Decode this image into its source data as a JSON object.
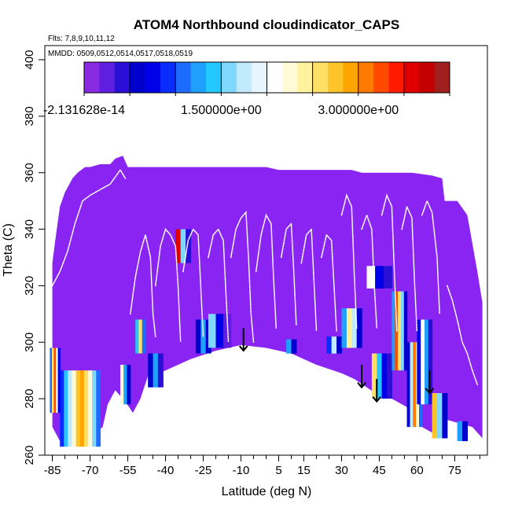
{
  "chart_data": {
    "type": "heatmap",
    "title": "ATOM4 Northbound cloudindicator_CAPS",
    "flights_label": "Flts: 7,8,9,10,11,12",
    "dates_label": "MMDD: 0509,0512,0514,0517,0518,0519",
    "xlabel": "Latitude (deg N)",
    "ylabel": "Theta (C)",
    "xlim": [
      -88,
      88
    ],
    "ylim": [
      260,
      405
    ],
    "x_ticks": [
      -85,
      -70,
      -55,
      -40,
      -25,
      -10,
      5,
      15,
      30,
      45,
      60,
      75
    ],
    "x_tick_labels": [
      "-85",
      "-70",
      "-55",
      "-40",
      "-25",
      "-10",
      "5",
      "15",
      "30",
      "45",
      "60",
      "75"
    ],
    "x_minor_step": 5,
    "y_ticks": [
      260,
      280,
      300,
      320,
      340,
      360,
      380,
      400
    ],
    "y_tick_labels": [
      "260",
      "280",
      "300",
      "320",
      "340",
      "360",
      "380",
      "400"
    ],
    "colorbar": {
      "range": [
        -2.131628e-14,
        4.0
      ],
      "tick_values": [
        -2.131628e-14,
        1.5,
        3.0
      ],
      "tick_labels": [
        "-2.131628e-14",
        "1.500000e+00",
        "3.000000e+00"
      ],
      "colors": [
        "#8a2be2",
        "#5f1ee0",
        "#2a0fd6",
        "#0000cd",
        "#0000e8",
        "#0a2cff",
        "#1e6bff",
        "#1fa0ff",
        "#22c8ff",
        "#7fd9ff",
        "#c2eaff",
        "#e6f5ff",
        "#ffffff",
        "#fffbd6",
        "#fff3a0",
        "#ffe066",
        "#ffc42a",
        "#ffa500",
        "#ff7a00",
        "#ff4a00",
        "#ff1a00",
        "#e00000",
        "#c20000",
        "#9f1f1f"
      ]
    },
    "background_value": 0,
    "background_color": "#8a24f2",
    "cloud_color": "#2850e8",
    "tropopause_line_color": "#ffffff",
    "data_region": {
      "top_edge": [
        [
          -85,
          328
        ],
        [
          -84,
          335
        ],
        [
          -82,
          348
        ],
        [
          -80,
          353
        ],
        [
          -77,
          358
        ],
        [
          -75,
          360
        ],
        [
          -72,
          362
        ],
        [
          -70,
          362
        ],
        [
          -66,
          363
        ],
        [
          -62,
          363
        ],
        [
          -60,
          365
        ],
        [
          -57,
          366
        ],
        [
          -55,
          362
        ],
        [
          -50,
          362
        ],
        [
          -40,
          362
        ],
        [
          -30,
          362
        ],
        [
          -20,
          362
        ],
        [
          -10,
          362
        ],
        [
          0,
          362
        ],
        [
          5,
          361
        ],
        [
          15,
          361
        ],
        [
          25,
          361
        ],
        [
          34,
          361
        ],
        [
          38,
          360
        ],
        [
          48,
          360
        ],
        [
          58,
          360
        ],
        [
          66,
          359
        ],
        [
          70,
          358
        ],
        [
          71,
          350
        ],
        [
          76,
          350
        ],
        [
          80,
          345
        ],
        [
          82,
          335
        ],
        [
          84,
          325
        ],
        [
          86,
          314
        ]
      ],
      "bottom_edge": [
        [
          86,
          266
        ],
        [
          82,
          270
        ],
        [
          78,
          271
        ],
        [
          74,
          272
        ],
        [
          70,
          273
        ],
        [
          66,
          268
        ],
        [
          62,
          270
        ],
        [
          58,
          276
        ],
        [
          54,
          278
        ],
        [
          50,
          280
        ],
        [
          45,
          281
        ],
        [
          40,
          284
        ],
        [
          35,
          287
        ],
        [
          30,
          289
        ],
        [
          20,
          292
        ],
        [
          10,
          296
        ],
        [
          0,
          298
        ],
        [
          -10,
          299
        ],
        [
          -20,
          297
        ],
        [
          -30,
          294
        ],
        [
          -40,
          290
        ],
        [
          -47,
          288
        ],
        [
          -50,
          280
        ],
        [
          -53,
          275
        ],
        [
          -56,
          279
        ],
        [
          -60,
          283
        ],
        [
          -63,
          278
        ],
        [
          -65,
          270
        ],
        [
          -72,
          265
        ],
        [
          -78,
          263
        ],
        [
          -82,
          265
        ],
        [
          -85,
          270
        ]
      ]
    },
    "patches": [
      {
        "lat_range": [
          -82,
          -66
        ],
        "theta_range": [
          263,
          290
        ],
        "values": [
          0.9,
          1.4,
          1.8,
          2.3,
          2.7,
          2.9,
          2.6,
          2.2,
          1.6,
          1.0
        ]
      },
      {
        "lat_range": [
          -86,
          -82
        ],
        "theta_range": [
          275,
          298
        ],
        "values": [
          1.0,
          2.6,
          3.2,
          2.0,
          0.8
        ]
      },
      {
        "lat_range": [
          -58,
          -54
        ],
        "theta_range": [
          278,
          292
        ],
        "values": [
          2.3,
          1.2,
          0.6
        ]
      },
      {
        "lat_range": [
          -52,
          -48
        ],
        "theta_range": [
          296,
          308
        ],
        "values": [
          1.4,
          2.6,
          1.0
        ]
      },
      {
        "lat_range": [
          -47,
          -41
        ],
        "theta_range": [
          284,
          296
        ],
        "values": [
          0.6,
          1.2,
          0.4
        ]
      },
      {
        "lat_range": [
          -36,
          -30
        ],
        "theta_range": [
          328,
          340
        ],
        "values": [
          3.6,
          1.6,
          0.4
        ]
      },
      {
        "lat_range": [
          -28,
          -22
        ],
        "theta_range": [
          296,
          308
        ],
        "values": [
          0.5,
          1.3,
          0.6
        ]
      },
      {
        "lat_range": [
          -23,
          -14
        ],
        "theta_range": [
          298,
          310
        ],
        "values": [
          1.5,
          0.8,
          0.3
        ]
      },
      {
        "lat_range": [
          8,
          12
        ],
        "theta_range": [
          296,
          301
        ],
        "values": [
          1.2,
          0.6
        ]
      },
      {
        "lat_range": [
          24,
          30
        ],
        "theta_range": [
          296,
          302
        ],
        "values": [
          0.9,
          1.8,
          0.6
        ]
      },
      {
        "lat_range": [
          30,
          38
        ],
        "theta_range": [
          298,
          312
        ],
        "values": [
          1.2,
          2.4,
          1.8,
          0.6
        ]
      },
      {
        "lat_range": [
          42,
          50
        ],
        "theta_range": [
          280,
          296
        ],
        "values": [
          2.6,
          1.4,
          0.8,
          0.4
        ]
      },
      {
        "lat_range": [
          40,
          50
        ],
        "theta_range": [
          319,
          327
        ],
        "values": [
          2.0,
          0.8,
          0.4
        ]
      },
      {
        "lat_range": [
          50,
          56
        ],
        "theta_range": [
          290,
          318
        ],
        "values": [
          1.2,
          3.2,
          2.6,
          1.6,
          0.6
        ]
      },
      {
        "lat_range": [
          56,
          62
        ],
        "theta_range": [
          270,
          300
        ],
        "values": [
          0.6,
          1.8,
          3.0,
          2.2,
          1.0
        ]
      },
      {
        "lat_range": [
          60,
          66
        ],
        "theta_range": [
          278,
          308
        ],
        "values": [
          0.8,
          2.1,
          1.3,
          0.4
        ]
      },
      {
        "lat_range": [
          66,
          72
        ],
        "theta_range": [
          266,
          282
        ],
        "values": [
          2.7,
          1.6,
          0.5
        ]
      },
      {
        "lat_range": [
          76,
          80
        ],
        "theta_range": [
          265,
          272
        ],
        "values": [
          1.3,
          0.6
        ]
      }
    ],
    "tropopause_traces": [
      [
        [
          -85,
          320
        ],
        [
          -82,
          325
        ],
        [
          -79,
          332
        ],
        [
          -76,
          342
        ],
        [
          -73,
          350
        ],
        [
          -70,
          352
        ],
        [
          -66,
          354
        ],
        [
          -62,
          356
        ],
        [
          -58,
          361
        ],
        [
          -56,
          358
        ]
      ],
      [
        [
          -54,
          310
        ],
        [
          -52,
          323
        ],
        [
          -50,
          332
        ],
        [
          -48,
          338
        ],
        [
          -46,
          330
        ],
        [
          -45,
          310
        ],
        [
          -44,
          302
        ]
      ],
      [
        [
          -44,
          320
        ],
        [
          -42,
          334
        ],
        [
          -40,
          340
        ],
        [
          -38,
          338
        ],
        [
          -36,
          334
        ],
        [
          -35,
          320
        ],
        [
          -34,
          300
        ]
      ],
      [
        [
          -33,
          325
        ],
        [
          -31,
          336
        ],
        [
          -29,
          340
        ],
        [
          -27,
          338
        ],
        [
          -26,
          320
        ],
        [
          -25,
          302
        ]
      ],
      [
        [
          -23,
          330
        ],
        [
          -21,
          338
        ],
        [
          -19,
          340
        ],
        [
          -17,
          336
        ],
        [
          -16,
          318
        ],
        [
          -15,
          300
        ]
      ],
      [
        [
          -14,
          330
        ],
        [
          -12,
          340
        ],
        [
          -10,
          344
        ],
        [
          -8,
          346
        ],
        [
          -7,
          330
        ],
        [
          -6,
          310
        ],
        [
          -5,
          300
        ]
      ],
      [
        [
          -4,
          325
        ],
        [
          -2,
          338
        ],
        [
          0,
          345
        ],
        [
          2,
          342
        ],
        [
          3,
          322
        ],
        [
          4,
          305
        ]
      ],
      [
        [
          6,
          330
        ],
        [
          8,
          340
        ],
        [
          10,
          342
        ],
        [
          11,
          325
        ],
        [
          12,
          306
        ]
      ],
      [
        [
          14,
          328
        ],
        [
          16,
          338
        ],
        [
          18,
          340
        ],
        [
          19,
          322
        ],
        [
          20,
          304
        ]
      ],
      [
        [
          22,
          330
        ],
        [
          24,
          338
        ],
        [
          26,
          336
        ],
        [
          27,
          320
        ],
        [
          28,
          304
        ]
      ],
      [
        [
          30,
          345
        ],
        [
          32,
          352
        ],
        [
          34,
          348
        ],
        [
          35,
          325
        ],
        [
          36,
          305
        ]
      ],
      [
        [
          38,
          340
        ],
        [
          40,
          345
        ],
        [
          42,
          340
        ],
        [
          43,
          320
        ],
        [
          44,
          305
        ]
      ],
      [
        [
          46,
          345
        ],
        [
          48,
          352
        ],
        [
          50,
          348
        ],
        [
          51,
          325
        ],
        [
          52,
          304
        ]
      ],
      [
        [
          54,
          340
        ],
        [
          56,
          348
        ],
        [
          58,
          344
        ],
        [
          59,
          322
        ],
        [
          60,
          304
        ]
      ],
      [
        [
          62,
          345
        ],
        [
          64,
          350
        ],
        [
          66,
          346
        ],
        [
          68,
          330
        ],
        [
          69,
          310
        ]
      ],
      [
        [
          72,
          320
        ],
        [
          74,
          315
        ],
        [
          76,
          308
        ],
        [
          78,
          300
        ],
        [
          80,
          296
        ],
        [
          82,
          290
        ],
        [
          84,
          285
        ]
      ]
    ],
    "arrows": [
      {
        "lat": -9,
        "theta_from": 305,
        "theta_to": 297
      },
      {
        "lat": 38,
        "theta_from": 292,
        "theta_to": 284
      },
      {
        "lat": 44,
        "theta_from": 287,
        "theta_to": 279
      },
      {
        "lat": 65,
        "theta_from": 290,
        "theta_to": 282
      }
    ]
  }
}
